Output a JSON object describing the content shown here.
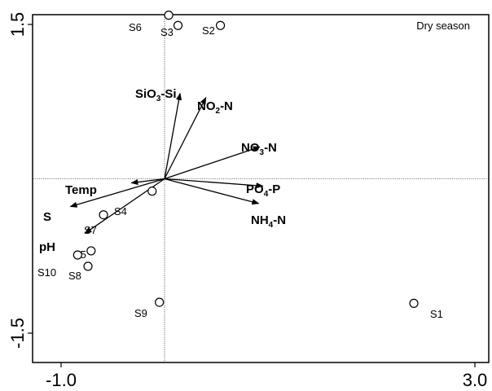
{
  "chart_data": {
    "type": "scatter",
    "title": "",
    "xlabel": "",
    "ylabel": "",
    "season_label": "Dry season",
    "xlim": [
      -1.0,
      3.0
    ],
    "ylim": [
      -1.5,
      1.5
    ],
    "x_ticks": [
      {
        "value": -1.0,
        "label": "-1.0"
      },
      {
        "value": 3.0,
        "label": "3.0"
      }
    ],
    "y_ticks": [
      {
        "value": 1.5,
        "label": "1.5"
      },
      {
        "value": -1.5,
        "label": "-1.5"
      }
    ],
    "reference_lines": {
      "x": 0,
      "y": 0
    },
    "sites": [
      {
        "label": "S1",
        "x": 2.41,
        "y": -1.21
      },
      {
        "label": "S2",
        "x": 0.54,
        "y": 1.49
      },
      {
        "label": "S3",
        "x": 0.13,
        "y": 1.49
      },
      {
        "label": "S4",
        "x": -0.12,
        "y": -0.12
      },
      {
        "label": "S5",
        "x": -0.71,
        "y": -0.7
      },
      {
        "label": "S6",
        "x": 0.04,
        "y": 1.59
      },
      {
        "label": "S7",
        "x": -0.59,
        "y": -0.35
      },
      {
        "label": "S8",
        "x": -0.74,
        "y": -0.85
      },
      {
        "label": "S9",
        "x": -0.05,
        "y": -1.2
      },
      {
        "label": "S10",
        "x": -0.84,
        "y": -0.74
      }
    ],
    "vectors": [
      {
        "label": "SiO",
        "sub": "3",
        "suffix": "-Si",
        "x": 0.15,
        "y": 0.83
      },
      {
        "label": "NO",
        "sub": "2",
        "suffix": "-N",
        "x": 0.4,
        "y": 0.79
      },
      {
        "label": "NO",
        "sub": "3",
        "suffix": "-N",
        "x": 0.92,
        "y": 0.31
      },
      {
        "label": "PO",
        "sub": "4",
        "suffix": "-P",
        "x": 0.95,
        "y": -0.07
      },
      {
        "label": "NH",
        "sub": "4",
        "suffix": "-N",
        "x": 0.91,
        "y": -0.24
      },
      {
        "label": "Temp",
        "sub": "",
        "suffix": "",
        "x": -0.32,
        "y": -0.04
      },
      {
        "label": "S",
        "sub": "",
        "suffix": "",
        "x": -0.91,
        "y": -0.27
      },
      {
        "label": "pH",
        "sub": "",
        "suffix": "",
        "x": -0.77,
        "y": -0.53
      }
    ]
  }
}
